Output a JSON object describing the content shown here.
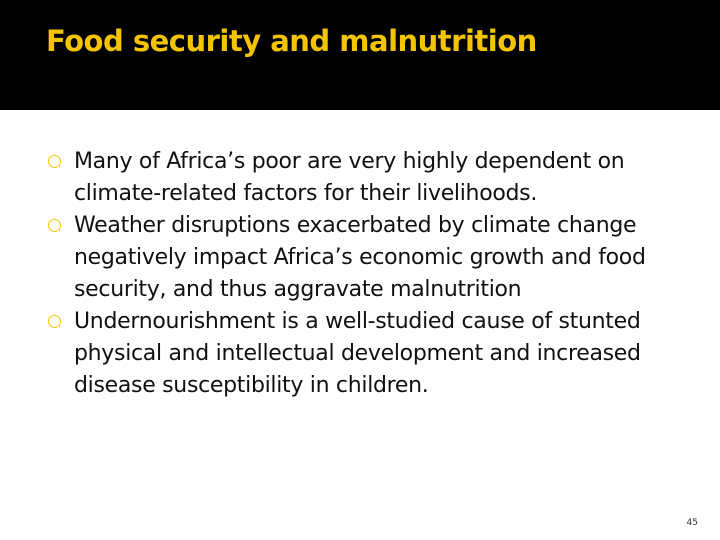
{
  "header": {
    "title": "Food security and malnutrition"
  },
  "bullets": [
    " Many of Africa’s poor are very highly dependent on climate-related factors for their livelihoods.",
    " Weather disruptions exacerbated by climate change negatively impact Africa’s economic growth and food security, and thus aggravate malnutrition",
    "Undernourishment is a well-studied cause of stunted physical and intellectual development and increased disease susceptibility in children."
  ],
  "page_number": "45"
}
